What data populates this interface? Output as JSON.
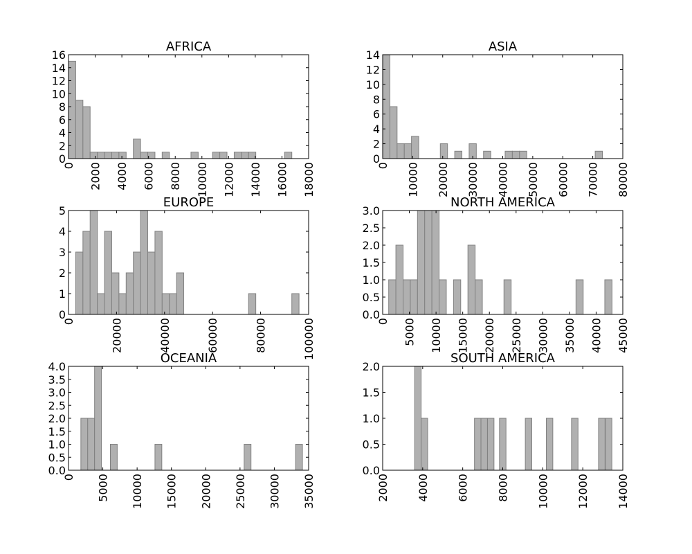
{
  "style": {
    "bar_fill": "#b0b0b0",
    "bar_stroke": "#808080",
    "frame": "#000000",
    "background": "#ffffff"
  },
  "chart_data": [
    {
      "type": "bar",
      "title": "AFRICA",
      "xlabel": "",
      "ylabel": "",
      "grid": false,
      "xlim": [
        0,
        18000
      ],
      "ylim": [
        0,
        16
      ],
      "xticks": [
        0,
        2000,
        4000,
        6000,
        8000,
        10000,
        12000,
        14000,
        16000,
        18000
      ],
      "yticks": [
        0,
        2,
        4,
        6,
        8,
        10,
        12,
        14,
        16
      ],
      "bin_width": 540,
      "bins": [
        {
          "x": 270,
          "count": 15
        },
        {
          "x": 810,
          "count": 9
        },
        {
          "x": 1350,
          "count": 8
        },
        {
          "x": 1890,
          "count": 1
        },
        {
          "x": 2430,
          "count": 1
        },
        {
          "x": 2970,
          "count": 1
        },
        {
          "x": 3510,
          "count": 1
        },
        {
          "x": 4050,
          "count": 1
        },
        {
          "x": 5130,
          "count": 3
        },
        {
          "x": 5670,
          "count": 1
        },
        {
          "x": 6210,
          "count": 1
        },
        {
          "x": 7290,
          "count": 1
        },
        {
          "x": 9450,
          "count": 1
        },
        {
          "x": 11070,
          "count": 1
        },
        {
          "x": 11610,
          "count": 1
        },
        {
          "x": 12690,
          "count": 1
        },
        {
          "x": 13230,
          "count": 1
        },
        {
          "x": 13770,
          "count": 1
        },
        {
          "x": 16470,
          "count": 1
        }
      ]
    },
    {
      "type": "bar",
      "title": "ASIA",
      "xlabel": "",
      "ylabel": "",
      "grid": false,
      "xlim": [
        0,
        80000
      ],
      "ylim": [
        0,
        14
      ],
      "xticks": [
        0,
        10000,
        20000,
        30000,
        40000,
        50000,
        60000,
        70000,
        80000
      ],
      "yticks": [
        0,
        2,
        4,
        6,
        8,
        10,
        12,
        14
      ],
      "bin_width": 2400,
      "bins": [
        {
          "x": 1200,
          "count": 14
        },
        {
          "x": 3600,
          "count": 7
        },
        {
          "x": 6000,
          "count": 2
        },
        {
          "x": 8400,
          "count": 2
        },
        {
          "x": 10800,
          "count": 3
        },
        {
          "x": 20400,
          "count": 2
        },
        {
          "x": 25200,
          "count": 1
        },
        {
          "x": 30000,
          "count": 2
        },
        {
          "x": 34800,
          "count": 1
        },
        {
          "x": 42000,
          "count": 1
        },
        {
          "x": 44400,
          "count": 1
        },
        {
          "x": 46800,
          "count": 1
        },
        {
          "x": 72000,
          "count": 1
        }
      ]
    },
    {
      "type": "bar",
      "title": "EUROPE",
      "xlabel": "",
      "ylabel": "",
      "grid": false,
      "xlim": [
        0,
        100000
      ],
      "ylim": [
        0,
        5
      ],
      "xticks": [
        0,
        20000,
        40000,
        60000,
        80000,
        100000
      ],
      "yticks": [
        0,
        1,
        2,
        3,
        4,
        5
      ],
      "bin_width": 3000,
      "bins": [
        {
          "x": 4500,
          "count": 3
        },
        {
          "x": 7500,
          "count": 4
        },
        {
          "x": 10500,
          "count": 5
        },
        {
          "x": 13500,
          "count": 1
        },
        {
          "x": 16500,
          "count": 4
        },
        {
          "x": 19500,
          "count": 2
        },
        {
          "x": 22500,
          "count": 1
        },
        {
          "x": 25500,
          "count": 2
        },
        {
          "x": 28500,
          "count": 3
        },
        {
          "x": 31500,
          "count": 5
        },
        {
          "x": 34500,
          "count": 3
        },
        {
          "x": 37500,
          "count": 4
        },
        {
          "x": 40500,
          "count": 1
        },
        {
          "x": 43500,
          "count": 1
        },
        {
          "x": 46500,
          "count": 2
        },
        {
          "x": 76500,
          "count": 1
        },
        {
          "x": 94500,
          "count": 1
        }
      ]
    },
    {
      "type": "bar",
      "title": "NORTH AMERICA",
      "xlabel": "",
      "ylabel": "",
      "grid": false,
      "xlim": [
        0,
        45000
      ],
      "ylim": [
        0,
        3.0
      ],
      "xticks": [
        0,
        5000,
        10000,
        15000,
        20000,
        25000,
        30000,
        35000,
        40000,
        45000
      ],
      "yticks": [
        0.0,
        0.5,
        1.0,
        1.5,
        2.0,
        2.5,
        3.0
      ],
      "bin_width": 1350,
      "bins": [
        {
          "x": 1800,
          "count": 1
        },
        {
          "x": 3150,
          "count": 2
        },
        {
          "x": 4500,
          "count": 1
        },
        {
          "x": 5850,
          "count": 1
        },
        {
          "x": 7200,
          "count": 3
        },
        {
          "x": 8550,
          "count": 3
        },
        {
          "x": 9900,
          "count": 3
        },
        {
          "x": 11250,
          "count": 1
        },
        {
          "x": 13950,
          "count": 1
        },
        {
          "x": 16650,
          "count": 2
        },
        {
          "x": 18000,
          "count": 1
        },
        {
          "x": 23400,
          "count": 1
        },
        {
          "x": 36900,
          "count": 1
        },
        {
          "x": 42300,
          "count": 1
        }
      ]
    },
    {
      "type": "bar",
      "title": "OCEANIA",
      "xlabel": "",
      "ylabel": "",
      "grid": false,
      "xlim": [
        0,
        35000
      ],
      "ylim": [
        0,
        4.0
      ],
      "xticks": [
        0,
        5000,
        10000,
        15000,
        20000,
        25000,
        30000,
        35000
      ],
      "yticks": [
        0.0,
        0.5,
        1.0,
        1.5,
        2.0,
        2.5,
        3.0,
        3.5,
        4.0
      ],
      "bin_width": 1000,
      "bins": [
        {
          "x": 2300,
          "count": 2
        },
        {
          "x": 3300,
          "count": 2
        },
        {
          "x": 4300,
          "count": 4
        },
        {
          "x": 6600,
          "count": 1
        },
        {
          "x": 13100,
          "count": 1
        },
        {
          "x": 26100,
          "count": 1
        },
        {
          "x": 33600,
          "count": 1
        }
      ]
    },
    {
      "type": "bar",
      "title": "SOUTH AMERICA",
      "xlabel": "",
      "ylabel": "",
      "grid": false,
      "xlim": [
        2000,
        14000
      ],
      "ylim": [
        0,
        2.0
      ],
      "xticks": [
        2000,
        4000,
        6000,
        8000,
        10000,
        12000,
        14000
      ],
      "yticks": [
        0.0,
        0.5,
        1.0,
        1.5,
        2.0
      ],
      "bin_width": 325,
      "bins": [
        {
          "x": 3760,
          "count": 2
        },
        {
          "x": 4085,
          "count": 1
        },
        {
          "x": 6750,
          "count": 1
        },
        {
          "x": 7075,
          "count": 1
        },
        {
          "x": 7400,
          "count": 1
        },
        {
          "x": 8000,
          "count": 1
        },
        {
          "x": 9290,
          "count": 1
        },
        {
          "x": 10340,
          "count": 1
        },
        {
          "x": 11600,
          "count": 1
        },
        {
          "x": 12950,
          "count": 1
        },
        {
          "x": 13290,
          "count": 1
        }
      ]
    }
  ]
}
